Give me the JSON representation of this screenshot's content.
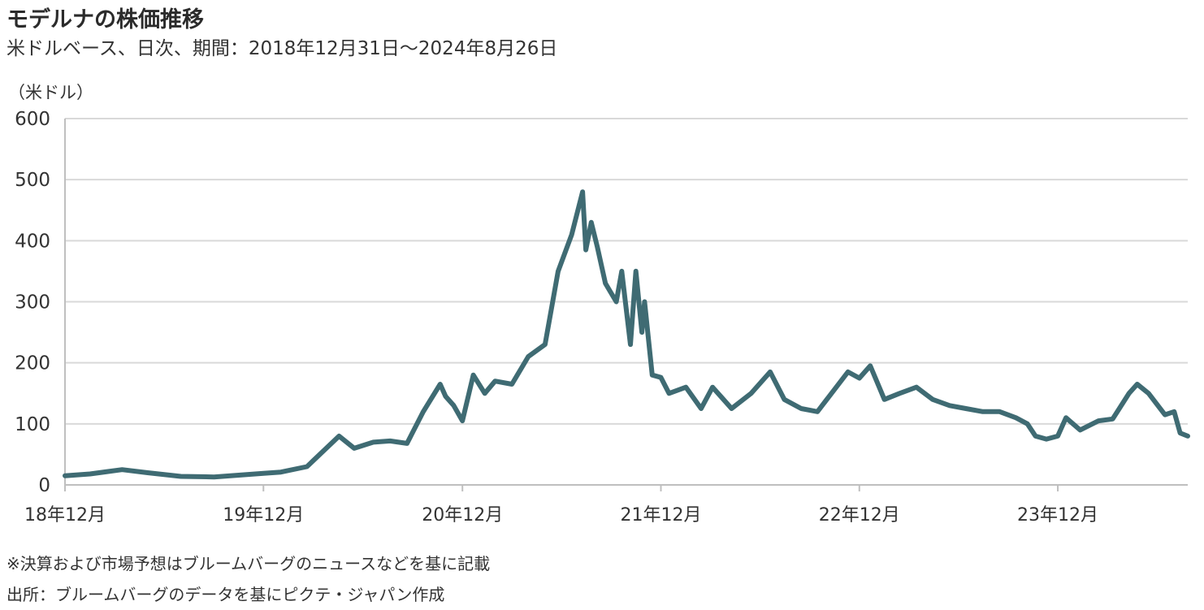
{
  "header": {
    "title": "モデルナの株価推移",
    "subtitle": "米ドルベース、日次、期間：2018年12月31日～2024年8月26日"
  },
  "notes": {
    "note1": "※決算および市場予想はブルームバーグのニュースなどを基に記載",
    "source": "出所：ブルームバーグのデータを基にピクテ・ジャパン作成"
  },
  "colors": {
    "line": "#3f6b73",
    "grid": "#d9d9d9",
    "axis": "#bfbfbf"
  },
  "chart_data": {
    "type": "line",
    "title": "モデルナの株価推移",
    "unit_label": "（米ドル）",
    "ylim": [
      0,
      600
    ],
    "yticks": [
      0,
      100,
      200,
      300,
      400,
      500,
      600
    ],
    "xlim": [
      "2018-12-31",
      "2024-08-26"
    ],
    "xticks": [
      {
        "date": "2018-12-31",
        "label": "18年12月"
      },
      {
        "date": "2019-12-31",
        "label": "19年12月"
      },
      {
        "date": "2020-12-31",
        "label": "20年12月"
      },
      {
        "date": "2021-12-31",
        "label": "21年12月"
      },
      {
        "date": "2022-12-31",
        "label": "22年12月"
      },
      {
        "date": "2023-12-31",
        "label": "23年12月"
      }
    ],
    "grid": true,
    "series": [
      {
        "x": [
          "2018-12-31",
          "2019-02-15",
          "2019-04-15",
          "2019-06-01",
          "2019-08-01",
          "2019-10-01",
          "2019-12-31",
          "2020-02-01",
          "2020-03-20",
          "2020-05-18",
          "2020-06-15",
          "2020-07-20",
          "2020-08-20",
          "2020-09-20",
          "2020-10-20",
          "2020-11-20",
          "2020-11-30",
          "2020-12-15",
          "2020-12-31",
          "2021-01-20",
          "2021-02-10",
          "2021-03-01",
          "2021-04-01",
          "2021-05-01",
          "2021-06-01",
          "2021-06-25",
          "2021-07-20",
          "2021-08-09",
          "2021-08-15",
          "2021-08-25",
          "2021-09-05",
          "2021-09-20",
          "2021-10-10",
          "2021-10-20",
          "2021-11-05",
          "2021-11-15",
          "2021-11-26",
          "2021-12-01",
          "2021-12-15",
          "2021-12-31",
          "2022-01-15",
          "2022-02-15",
          "2022-03-15",
          "2022-04-05",
          "2022-05-10",
          "2022-06-15",
          "2022-07-20",
          "2022-08-15",
          "2022-09-15",
          "2022-10-15",
          "2022-12-10",
          "2022-12-31",
          "2023-01-20",
          "2023-02-15",
          "2023-03-15",
          "2023-04-15",
          "2023-05-15",
          "2023-06-15",
          "2023-07-15",
          "2023-08-15",
          "2023-09-15",
          "2023-10-15",
          "2023-11-05",
          "2023-11-20",
          "2023-12-10",
          "2023-12-31",
          "2024-01-15",
          "2024-02-10",
          "2024-03-15",
          "2024-04-10",
          "2024-05-10",
          "2024-05-25",
          "2024-06-15",
          "2024-07-15",
          "2024-08-01",
          "2024-08-12",
          "2024-08-26"
        ],
        "y": [
          15,
          18,
          25,
          20,
          14,
          13,
          19,
          21,
          30,
          80,
          60,
          70,
          72,
          68,
          120,
          165,
          145,
          130,
          105,
          180,
          150,
          170,
          165,
          210,
          230,
          350,
          410,
          480,
          385,
          430,
          390,
          330,
          300,
          350,
          230,
          350,
          250,
          300,
          180,
          176,
          150,
          160,
          125,
          160,
          125,
          150,
          185,
          140,
          125,
          120,
          185,
          175,
          195,
          140,
          150,
          160,
          140,
          130,
          125,
          120,
          120,
          110,
          100,
          80,
          75,
          80,
          110,
          90,
          105,
          108,
          150,
          165,
          150,
          115,
          120,
          85,
          80
        ]
      }
    ]
  }
}
